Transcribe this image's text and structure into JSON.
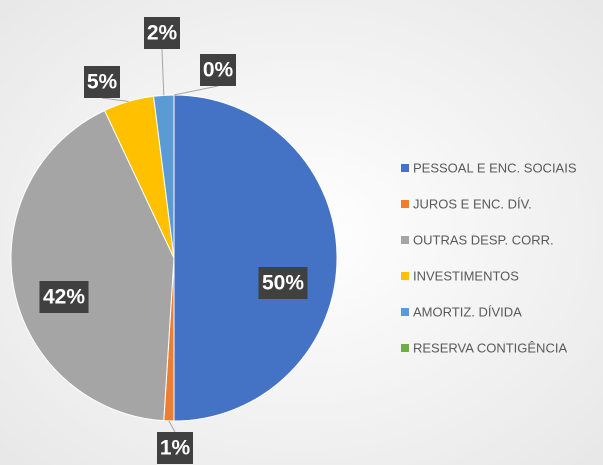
{
  "chart_data": {
    "type": "pie",
    "categories": [
      "PESSOAL E ENC. SOCIAIS",
      "JUROS E ENC. DÍV.",
      "OUTRAS DESP. CORR.",
      "INVESTIMENTOS",
      "AMORTIZ. DÍVIDA",
      "RESERVA CONTIGÊNCIA"
    ],
    "values": [
      50,
      1,
      42,
      5,
      2,
      0
    ],
    "value_labels": [
      "50%",
      "1%",
      "42%",
      "5%",
      "2%",
      "0%"
    ],
    "colors": [
      "#4472c4",
      "#ed7d31",
      "#a5a5a5",
      "#ffc000",
      "#5b9bd5",
      "#70ad47"
    ],
    "legend": "right"
  }
}
